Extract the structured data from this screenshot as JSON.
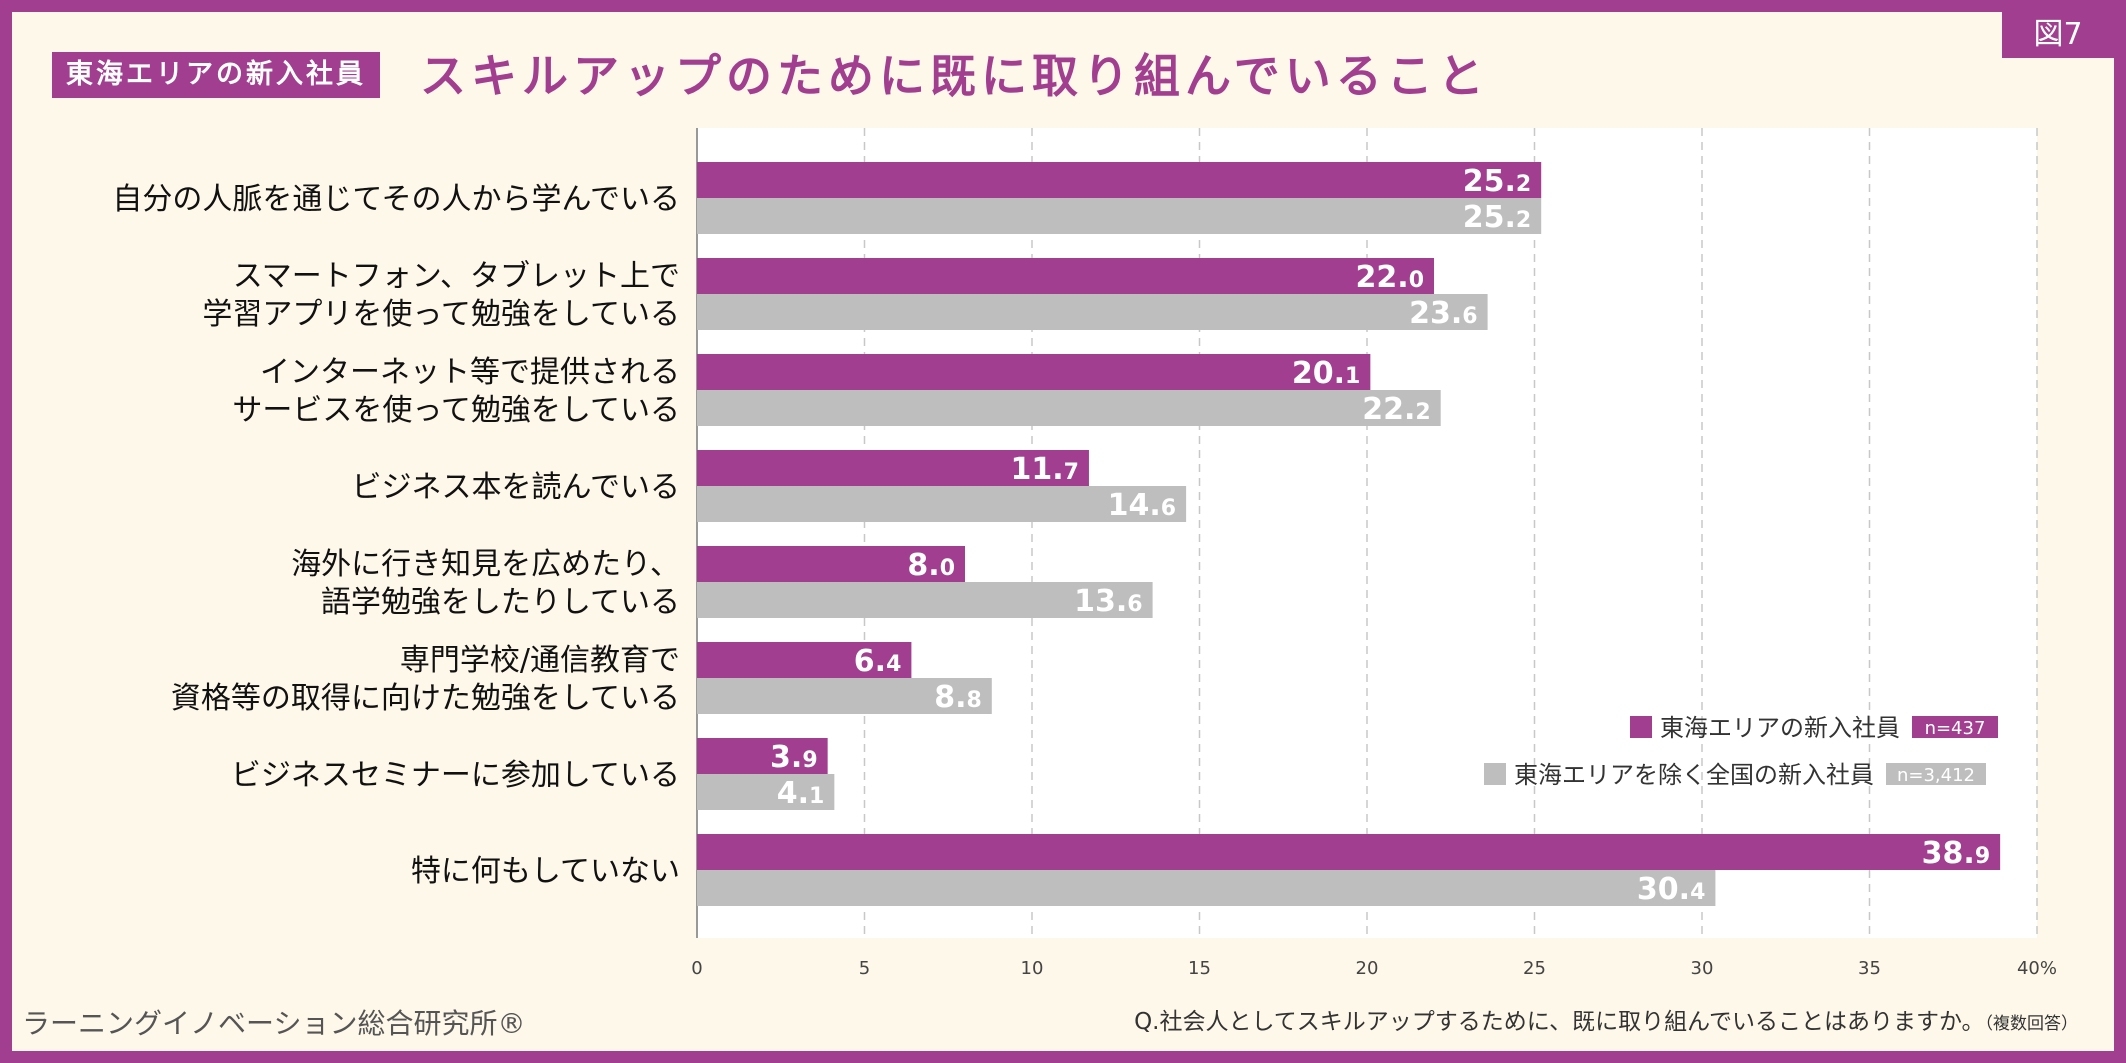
{
  "figure_label": "図7",
  "header": {
    "tag": "東海エリアの新入社員",
    "title": "スキルアップのために既に取り組んでいること"
  },
  "footer": {
    "organization": "ラーニングイノベーション総合研究所®",
    "question": "Q.社会人としてスキルアップするために、既に取り組んでいることはありますか。",
    "question_note": "（複数回答）"
  },
  "colors": {
    "frame": "#A13E90",
    "background": "#FDF8E9",
    "series_tokai": "#A13E90",
    "series_other": "#BEBEBE",
    "plot_bg": "#FFFFFF"
  },
  "chart_data": {
    "type": "bar",
    "orientation": "horizontal",
    "categories": [
      [
        "自分の人脈を通じてその人から学んでいる"
      ],
      [
        "スマートフォン、タブレット上で",
        "学習アプリを使って勉強をしている"
      ],
      [
        "インターネット等で提供される",
        "サービスを使って勉強をしている"
      ],
      [
        "ビジネス本を読んでいる"
      ],
      [
        "海外に行き知見を広めたり、",
        "語学勉強をしたりしている"
      ],
      [
        "専門学校/通信教育で",
        "資格等の取得に向けた勉強をしている"
      ],
      [
        "ビジネスセミナーに参加している"
      ],
      [
        "特に何もしていない"
      ]
    ],
    "series": [
      {
        "name": "東海エリアの新入社員",
        "n": "n=437",
        "color": "#A13E90",
        "values": [
          25.2,
          22.0,
          20.1,
          11.7,
          8.0,
          6.4,
          3.9,
          38.9
        ]
      },
      {
        "name": "東海エリアを除く全国の新入社員",
        "n": "n=3,412",
        "color": "#BEBEBE",
        "values": [
          25.2,
          23.6,
          22.2,
          14.6,
          13.6,
          8.8,
          4.1,
          30.4
        ]
      }
    ],
    "xlim": [
      0,
      40
    ],
    "ticks": [
      "0",
      "5",
      "10",
      "15",
      "20",
      "25",
      "30",
      "35",
      "40%"
    ],
    "grid": true,
    "legend_position": "bottom-right"
  }
}
